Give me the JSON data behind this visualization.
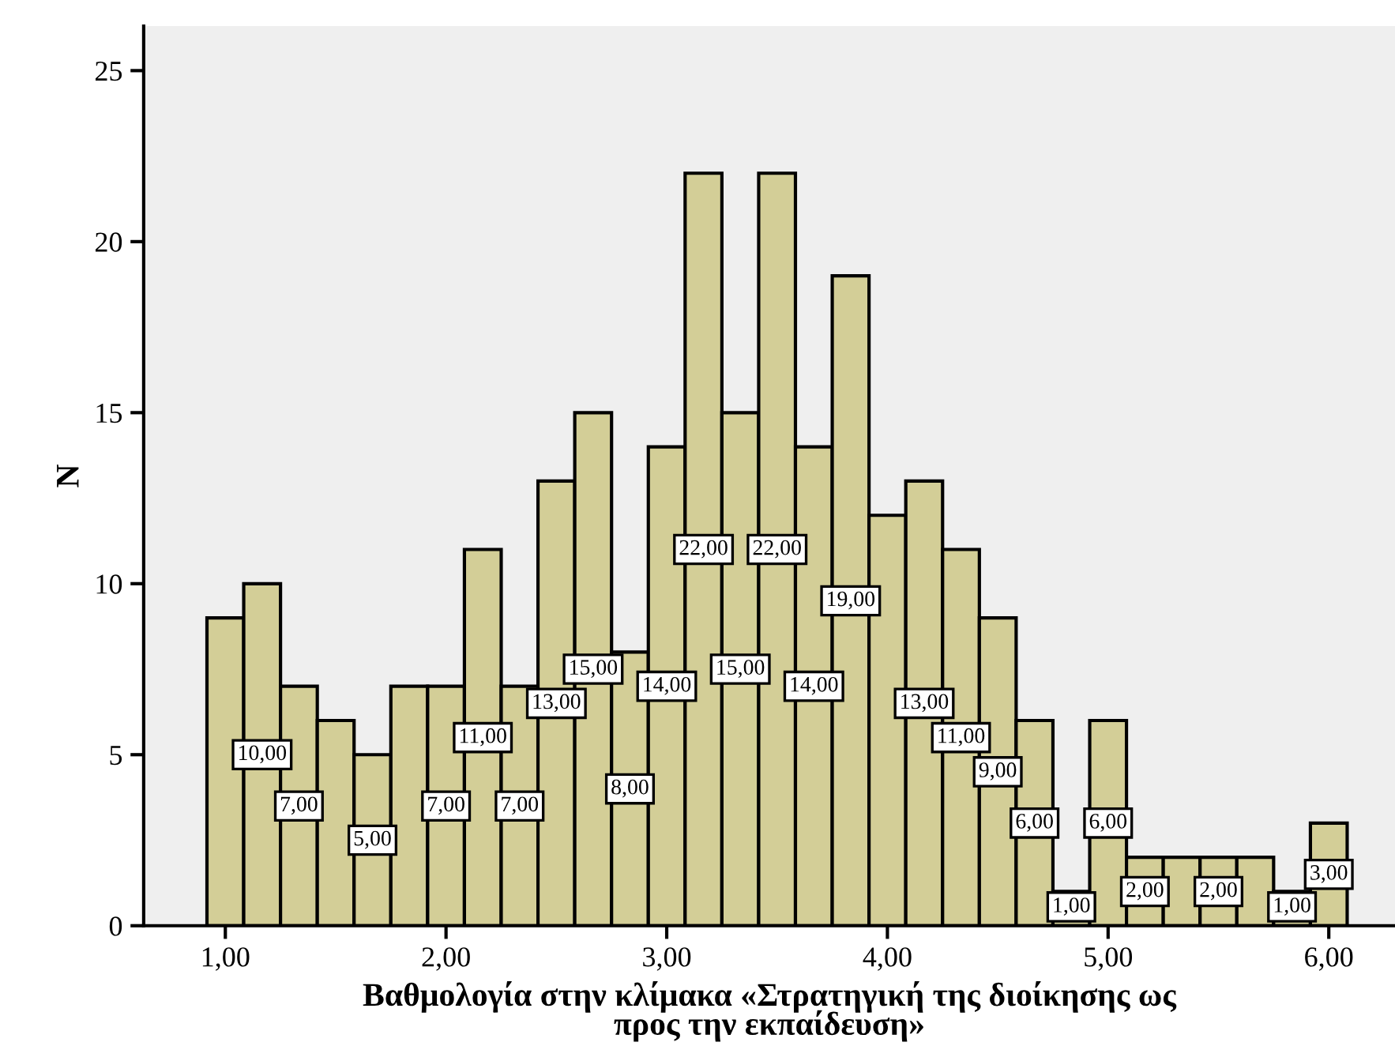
{
  "chart_data": {
    "type": "histogram",
    "xlabel": "Βαθμολογία στην κλίμακα «Στρατηγική της διοίκησης ως\nπρος την εκπαίδευση»",
    "ylabel": "N",
    "bins": [
      0.9167,
      1.0833,
      1.25,
      1.4167,
      1.5833,
      1.75,
      1.9167,
      2.0833,
      2.25,
      2.4167,
      2.5833,
      2.75,
      2.9167,
      3.0833,
      3.25,
      3.4167,
      3.5833,
      3.75,
      3.9167,
      4.0833,
      4.25,
      4.4167,
      4.5833,
      4.75,
      4.9167,
      5.0833,
      5.25,
      5.4167,
      5.5833,
      5.75,
      5.9167,
      6.0833
    ],
    "values": [
      9,
      10,
      7,
      6,
      5,
      7,
      7,
      11,
      7,
      13,
      15,
      8,
      14,
      22,
      15,
      22,
      14,
      19,
      12,
      13,
      11,
      9,
      6,
      1,
      6,
      2,
      2,
      2,
      2,
      1,
      3
    ],
    "value_labels": [
      null,
      "10,00",
      "7,00",
      null,
      "5,00",
      null,
      "7,00",
      "11,00",
      "7,00",
      "13,00",
      "15,00",
      "8,00",
      "14,00",
      "22,00",
      "15,00",
      "22,00",
      "14,00",
      "19,00",
      null,
      "13,00",
      "11,00",
      "9,00",
      "6,00",
      "1,00",
      "6,00",
      "2,00",
      null,
      "2,00",
      null,
      "1,00",
      "3,00"
    ],
    "color": "#d3ce97",
    "xlim": [
      0.63,
      6.3
    ],
    "xticks": [
      {
        "value": 1,
        "label": "1,00"
      },
      {
        "value": 2,
        "label": "2,00"
      },
      {
        "value": 3,
        "label": "3,00"
      },
      {
        "value": 4,
        "label": "4,00"
      },
      {
        "value": 5,
        "label": "5,00"
      },
      {
        "value": 6,
        "label": "6,00"
      }
    ],
    "ylim": [
      0,
      26.3
    ],
    "yticks": [
      0,
      5,
      10,
      15,
      20,
      25
    ],
    "grid": false
  }
}
